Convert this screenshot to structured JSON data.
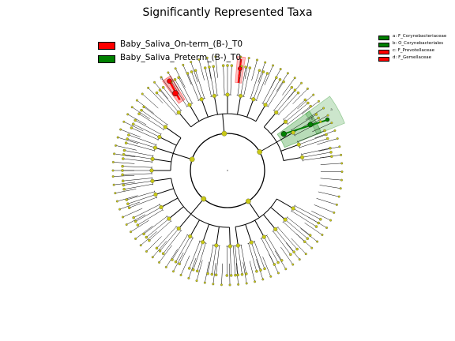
{
  "title": "Significantly Represented Taxa",
  "legend": [
    {
      "label": "Baby_Saliva_On-term_(B-)_T0",
      "color": "#ff0000"
    },
    {
      "label": "Baby_Saliva_Preterm_(B-)_T0",
      "color": "#008000"
    }
  ],
  "clade_key": [
    {
      "label": "a: F_Corynebacteriaceae",
      "color": "#008000"
    },
    {
      "label": "b: O_Corynebacteriales",
      "color": "#008000"
    },
    {
      "label": "c: F_Prevotellaceae",
      "color": "#ff0000"
    },
    {
      "label": "d: F_Gemellaceae",
      "color": "#ff0000"
    }
  ],
  "clade_markers": {
    "a": "a",
    "b": "b",
    "c": "c",
    "d": "d"
  },
  "node_colors": {
    "neutral": "#c8c816",
    "on_term": "#ff0000",
    "preterm": "#008000"
  }
}
